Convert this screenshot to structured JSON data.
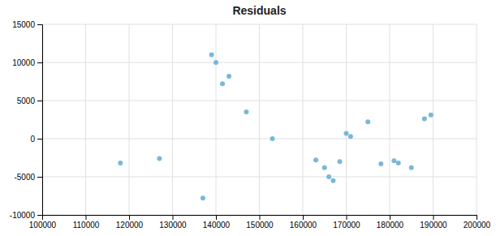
{
  "chart_data": {
    "type": "scatter",
    "title": "Residuals",
    "color": "#6ab0d4",
    "x": [
      118000,
      127000,
      137000,
      139000,
      140000,
      141500,
      143000,
      147000,
      153000,
      163000,
      165000,
      166000,
      167000,
      168500,
      170000,
      171000,
      175000,
      178000,
      181000,
      182000,
      185000,
      188000,
      189500
    ],
    "y": [
      -3200,
      -2600,
      -7800,
      11000,
      10000,
      7200,
      8200,
      3500,
      0,
      -2800,
      -3800,
      -5000,
      -5500,
      -3000,
      700,
      300,
      2200,
      -3300,
      -2900,
      -3200,
      -3800,
      2600,
      3100
    ],
    "xlim": [
      100000,
      200000
    ],
    "ylim": [
      -10000,
      15000
    ],
    "xticks": [
      100000,
      110000,
      120000,
      130000,
      140000,
      150000,
      160000,
      170000,
      180000,
      190000,
      200000
    ],
    "yticks": [
      -10000,
      -5000,
      0,
      5000,
      10000,
      15000
    ],
    "grid": true
  }
}
